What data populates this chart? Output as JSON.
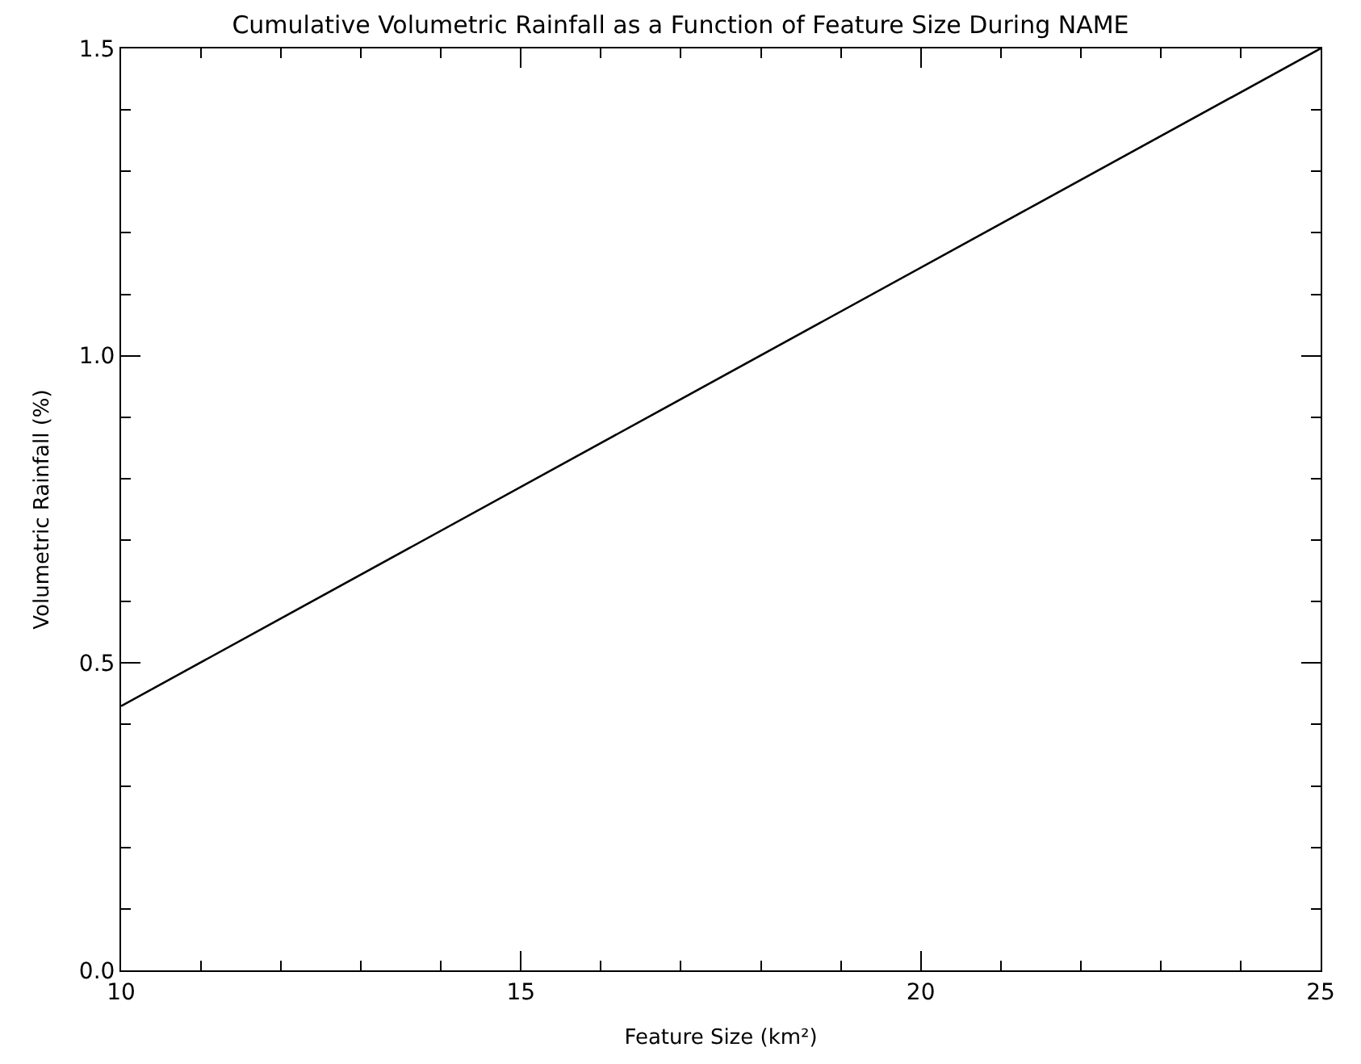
{
  "chart_data": {
    "type": "line",
    "title": "Cumulative Volumetric Rainfall as a Function of Feature Size During NAME",
    "xlabel": "Feature Size (km²)",
    "ylabel": "Volumetric Rainfall (%)",
    "x": [
      10,
      25
    ],
    "series": [
      {
        "color": "#000000",
        "values": [
          0.43,
          1.5
        ]
      }
    ],
    "xlim": [
      10,
      25
    ],
    "ylim": [
      0,
      1.5
    ],
    "xticks": [
      10,
      {
        "value": 11,
        "label": null
      },
      {
        "value": 12,
        "label": null
      },
      {
        "value": 13,
        "label": null
      },
      {
        "value": 14,
        "label": null
      },
      15,
      {
        "value": 16,
        "label": null
      },
      {
        "value": 17,
        "label": null
      },
      {
        "value": 18,
        "label": null
      },
      {
        "value": 19,
        "label": null
      },
      20,
      {
        "value": 21,
        "label": null
      },
      {
        "value": 22,
        "label": null
      },
      {
        "value": 23,
        "label": null
      },
      {
        "value": 24,
        "label": null
      },
      25
    ],
    "yticks": [
      {
        "value": 0,
        "label": "0.0"
      },
      {
        "value": 0.1,
        "label": null
      },
      {
        "value": 0.2,
        "label": null
      },
      {
        "value": 0.3,
        "label": null
      },
      {
        "value": 0.4,
        "label": null
      },
      {
        "value": 0.5,
        "label": "0.5"
      },
      {
        "value": 0.6,
        "label": null
      },
      {
        "value": 0.7,
        "label": null
      },
      {
        "value": 0.8,
        "label": null
      },
      {
        "value": 0.9,
        "label": null
      },
      {
        "value": 1.0,
        "label": "1.0"
      },
      {
        "value": 1.1,
        "label": null
      },
      {
        "value": 1.2,
        "label": null
      },
      {
        "value": 1.3,
        "label": null
      },
      {
        "value": 1.4,
        "label": null
      },
      {
        "value": 1.5,
        "label": "1.5"
      }
    ],
    "grid": false,
    "marker": "none",
    "line_style": "solid"
  }
}
